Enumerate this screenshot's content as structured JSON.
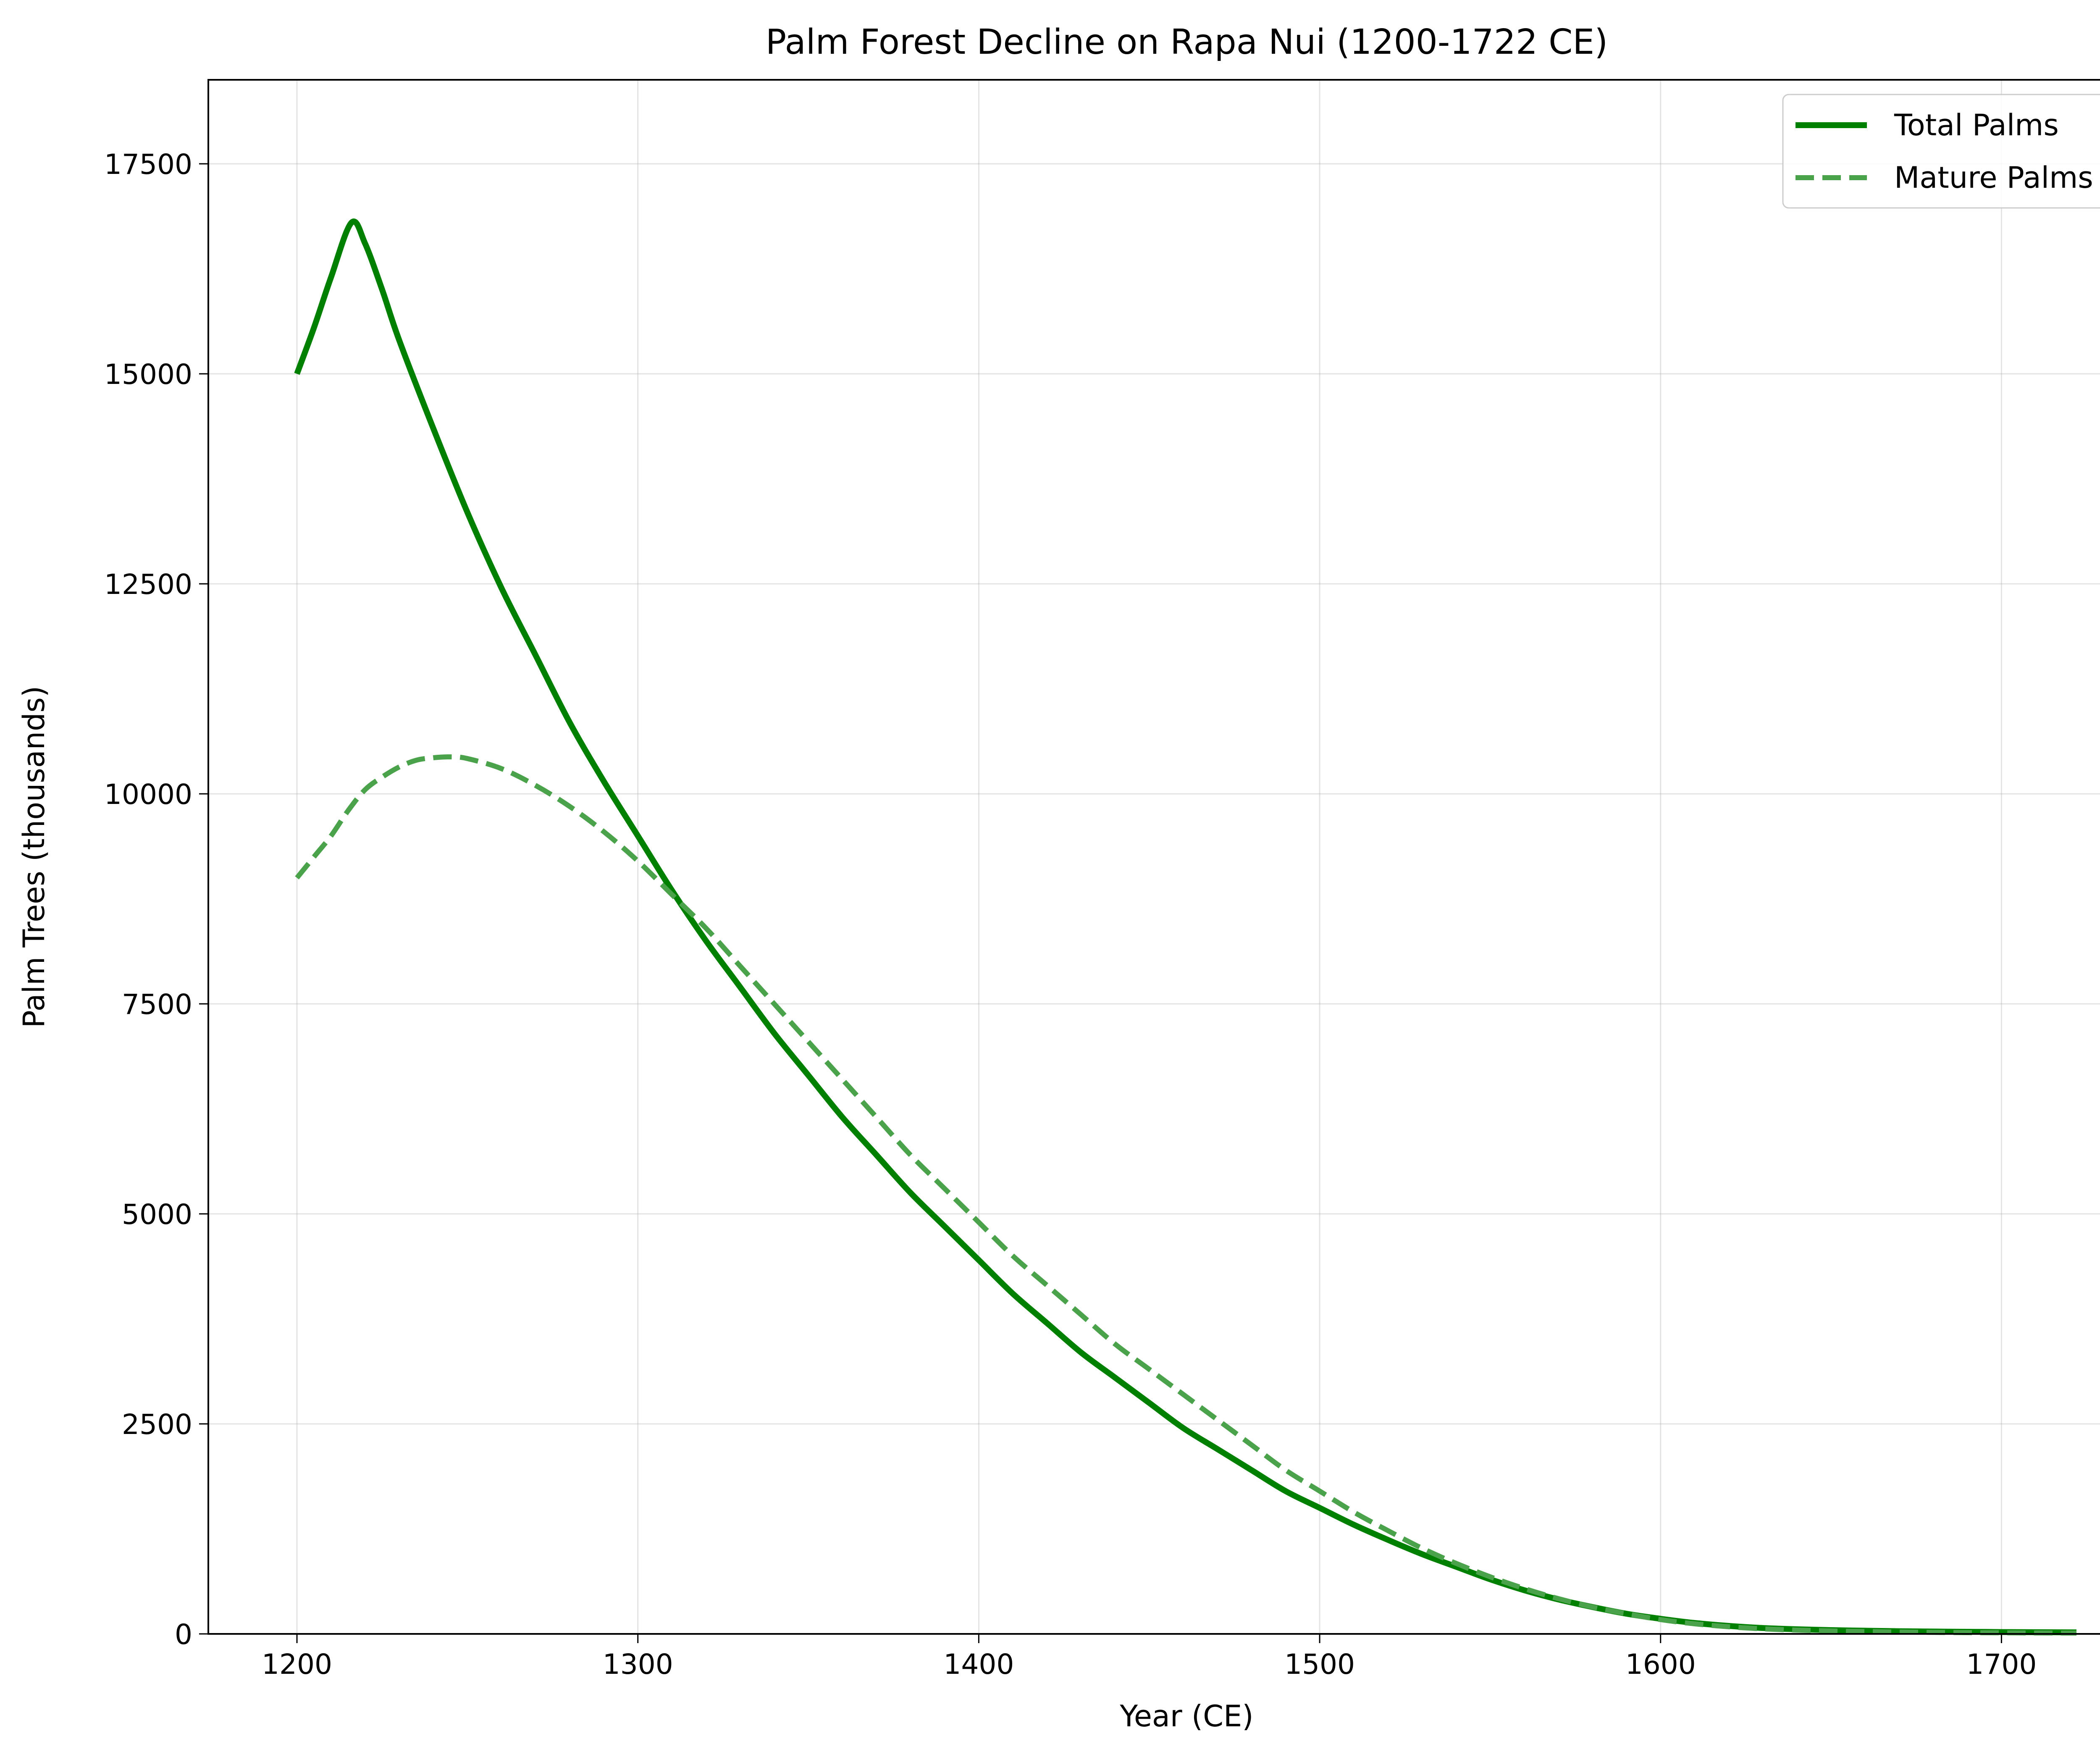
{
  "chart_data": {
    "type": "line",
    "title": "Palm Forest Decline on Rapa Nui (1200-1722 CE)",
    "xlabel": "Year (CE)",
    "ylabel": "Palm Trees (thousands)",
    "xlim": [
      1174,
      1748
    ],
    "ylim": [
      0,
      18500
    ],
    "xticks": [
      1200,
      1300,
      1400,
      1500,
      1600,
      1700
    ],
    "yticks": [
      0,
      2500,
      5000,
      7500,
      10000,
      12500,
      15000,
      17500
    ],
    "grid": true,
    "legend_position": "top-right",
    "series": [
      {
        "name": "Total Palms",
        "style": "solid",
        "color": "#008000",
        "x": [
          1200,
          1205,
          1210,
          1216,
          1220,
          1225,
          1230,
          1240,
          1250,
          1260,
          1270,
          1280,
          1290,
          1300,
          1310,
          1320,
          1330,
          1340,
          1350,
          1360,
          1370,
          1380,
          1390,
          1400,
          1410,
          1420,
          1430,
          1440,
          1450,
          1460,
          1470,
          1480,
          1490,
          1500,
          1510,
          1520,
          1530,
          1540,
          1550,
          1560,
          1570,
          1580,
          1590,
          1600,
          1610,
          1620,
          1630,
          1640,
          1650,
          1660,
          1670,
          1680,
          1690,
          1700,
          1710,
          1722
        ],
        "y": [
          15000,
          15550,
          16150,
          16800,
          16550,
          16000,
          15400,
          14350,
          13350,
          12450,
          11650,
          10850,
          10150,
          9500,
          8850,
          8250,
          7700,
          7150,
          6650,
          6150,
          5700,
          5250,
          4850,
          4450,
          4050,
          3700,
          3350,
          3050,
          2750,
          2450,
          2200,
          1950,
          1700,
          1500,
          1300,
          1120,
          950,
          800,
          650,
          520,
          410,
          320,
          240,
          180,
          130,
          95,
          70,
          55,
          45,
          38,
          32,
          28,
          25,
          22,
          20,
          18
        ]
      },
      {
        "name": "Mature Palms",
        "style": "dashed",
        "color": "#4aa24a",
        "x": [
          1200,
          1205,
          1210,
          1215,
          1220,
          1225,
          1230,
          1235,
          1240,
          1245,
          1250,
          1260,
          1270,
          1280,
          1290,
          1300,
          1310,
          1320,
          1330,
          1340,
          1350,
          1360,
          1370,
          1380,
          1390,
          1400,
          1410,
          1420,
          1430,
          1440,
          1450,
          1460,
          1470,
          1480,
          1490,
          1500,
          1510,
          1520,
          1530,
          1540,
          1550,
          1560,
          1570,
          1580,
          1590,
          1600,
          1610,
          1620,
          1630,
          1640,
          1650,
          1660,
          1670,
          1680,
          1690,
          1700,
          1710,
          1722
        ],
        "y": [
          9000,
          9250,
          9500,
          9800,
          10050,
          10200,
          10320,
          10400,
          10430,
          10440,
          10420,
          10300,
          10100,
          9850,
          9550,
          9200,
          8800,
          8400,
          7950,
          7500,
          7050,
          6600,
          6150,
          5700,
          5300,
          4900,
          4500,
          4150,
          3800,
          3450,
          3150,
          2850,
          2550,
          2250,
          1950,
          1700,
          1450,
          1230,
          1020,
          840,
          680,
          540,
          420,
          320,
          240,
          170,
          120,
          85,
          60,
          45,
          35,
          28,
          22,
          18,
          15,
          13,
          11,
          10
        ]
      }
    ]
  }
}
